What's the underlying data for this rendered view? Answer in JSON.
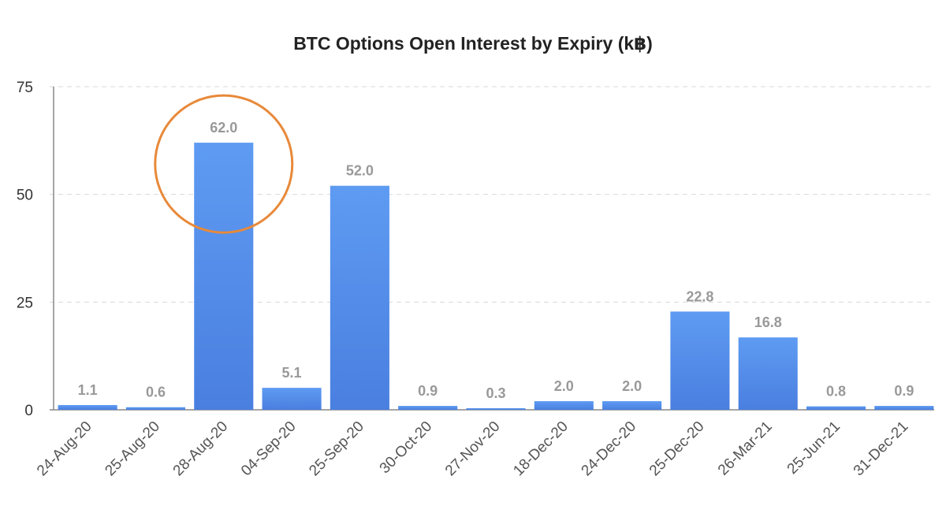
{
  "chart_data": {
    "type": "bar",
    "title": "BTC Options Open Interest by Expiry (k฿)",
    "xlabel": "",
    "ylabel": "",
    "categories": [
      "24-Aug-20",
      "25-Aug-20",
      "28-Aug-20",
      "04-Sep-20",
      "25-Sep-20",
      "30-Oct-20",
      "27-Nov-20",
      "18-Dec-20",
      "24-Dec-20",
      "25-Dec-20",
      "26-Mar-21",
      "25-Jun-21",
      "31-Dec-21"
    ],
    "values": [
      1.1,
      0.6,
      62.0,
      5.1,
      52.0,
      0.9,
      0.3,
      2.0,
      2.0,
      22.8,
      16.8,
      0.8,
      0.9
    ],
    "data_labels": [
      "1.1",
      "0.6",
      "62.0",
      "5.1",
      "52.0",
      "0.9",
      "0.3",
      "2.0",
      "2.0",
      "22.8",
      "16.8",
      "0.8",
      "0.9"
    ],
    "ylim": [
      0,
      75
    ],
    "yticks": [
      0,
      25,
      50,
      75
    ],
    "grid": true,
    "legend": "none",
    "highlight": {
      "category": "28-Aug-20",
      "shape": "circle"
    },
    "colors": {
      "bar_top": "#5e9bf2",
      "bar_bottom": "#4a7fe0",
      "grid": "#d9d9d9",
      "axis": "#888888",
      "data_label": "#999999",
      "tick_label": "#333333",
      "x_tick_label": "#555555",
      "highlight": "#e8893a"
    }
  }
}
